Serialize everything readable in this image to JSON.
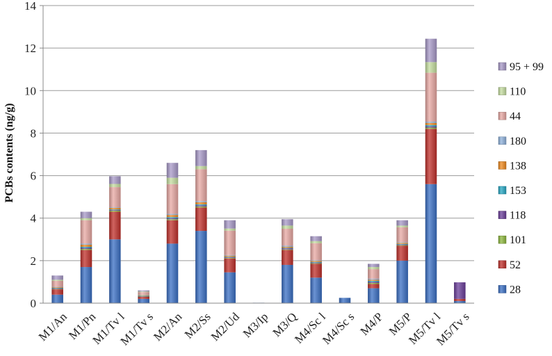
{
  "chart_data": {
    "type": "bar",
    "stacked": true,
    "ylabel": "PCBs contents (ng/g)",
    "xlabel": "",
    "ylim": [
      0,
      14
    ],
    "yticks": [
      0,
      2,
      4,
      6,
      8,
      10,
      12,
      14
    ],
    "grid": true,
    "legend_position": "right",
    "categories": [
      "M1/An",
      "M1/Pn",
      "M1/Tv l",
      "M1/Tv s",
      "M2/An",
      "M2/Ss",
      "M2/Ud",
      "M3/Ip",
      "M3/Q",
      "M4/Sc l",
      "M4/Sc s",
      "M4/P",
      "M5/P",
      "M5/Tv l",
      "M5/Tv s"
    ],
    "series": [
      {
        "name": "28",
        "color": "#3a6fc4",
        "values": [
          0.4,
          1.7,
          3.0,
          0.2,
          2.8,
          3.4,
          1.45,
          0.02,
          1.8,
          1.2,
          0.25,
          0.7,
          2.0,
          5.6,
          0.1
        ]
      },
      {
        "name": "52",
        "color": "#c0302b",
        "values": [
          0.25,
          0.8,
          1.3,
          0.1,
          1.1,
          1.1,
          0.65,
          0.0,
          0.7,
          0.65,
          0.0,
          0.2,
          0.7,
          2.6,
          0.1
        ]
      },
      {
        "name": "101",
        "color": "#8db83d",
        "values": [
          0.02,
          0.05,
          0.05,
          0.01,
          0.05,
          0.05,
          0.03,
          0.0,
          0.03,
          0.03,
          0.0,
          0.05,
          0.03,
          0.06,
          0.0
        ]
      },
      {
        "name": "118",
        "color": "#6a3d9a",
        "values": [
          0.03,
          0.05,
          0.03,
          0.02,
          0.05,
          0.05,
          0.03,
          0.0,
          0.05,
          0.03,
          0.0,
          0.05,
          0.03,
          0.06,
          0.78
        ]
      },
      {
        "name": "153",
        "color": "#27a8c4",
        "values": [
          0.02,
          0.05,
          0.03,
          0.02,
          0.05,
          0.05,
          0.02,
          0.0,
          0.02,
          0.03,
          0.0,
          0.05,
          0.03,
          0.06,
          0.0
        ]
      },
      {
        "name": "138",
        "color": "#f08a1e",
        "values": [
          0.03,
          0.1,
          0.07,
          0.03,
          0.1,
          0.1,
          0.05,
          0.0,
          0.05,
          0.05,
          0.0,
          0.05,
          0.05,
          0.1,
          0.0
        ]
      },
      {
        "name": "180",
        "color": "#8fb2dc",
        "values": [
          0.02,
          0.05,
          0.03,
          0.02,
          0.05,
          0.05,
          0.03,
          0.0,
          0.05,
          0.03,
          0.0,
          0.05,
          0.03,
          0.06,
          0.0
        ]
      },
      {
        "name": "44",
        "color": "#e8a8a3",
        "values": [
          0.28,
          1.1,
          0.95,
          0.12,
          1.4,
          1.5,
          1.15,
          0.0,
          0.8,
          0.8,
          0.0,
          0.45,
          0.7,
          2.3,
          0.0
        ]
      },
      {
        "name": "110",
        "color": "#c5dea0",
        "values": [
          0.05,
          0.1,
          0.15,
          0.03,
          0.3,
          0.15,
          0.1,
          0.0,
          0.15,
          0.1,
          0.0,
          0.1,
          0.08,
          0.5,
          0.0
        ]
      },
      {
        "name": "95 + 99",
        "color": "#a899c8",
        "values": [
          0.2,
          0.3,
          0.36,
          0.05,
          0.7,
          0.75,
          0.39,
          0.0,
          0.3,
          0.23,
          0.0,
          0.15,
          0.25,
          1.1,
          0.0
        ]
      }
    ]
  }
}
